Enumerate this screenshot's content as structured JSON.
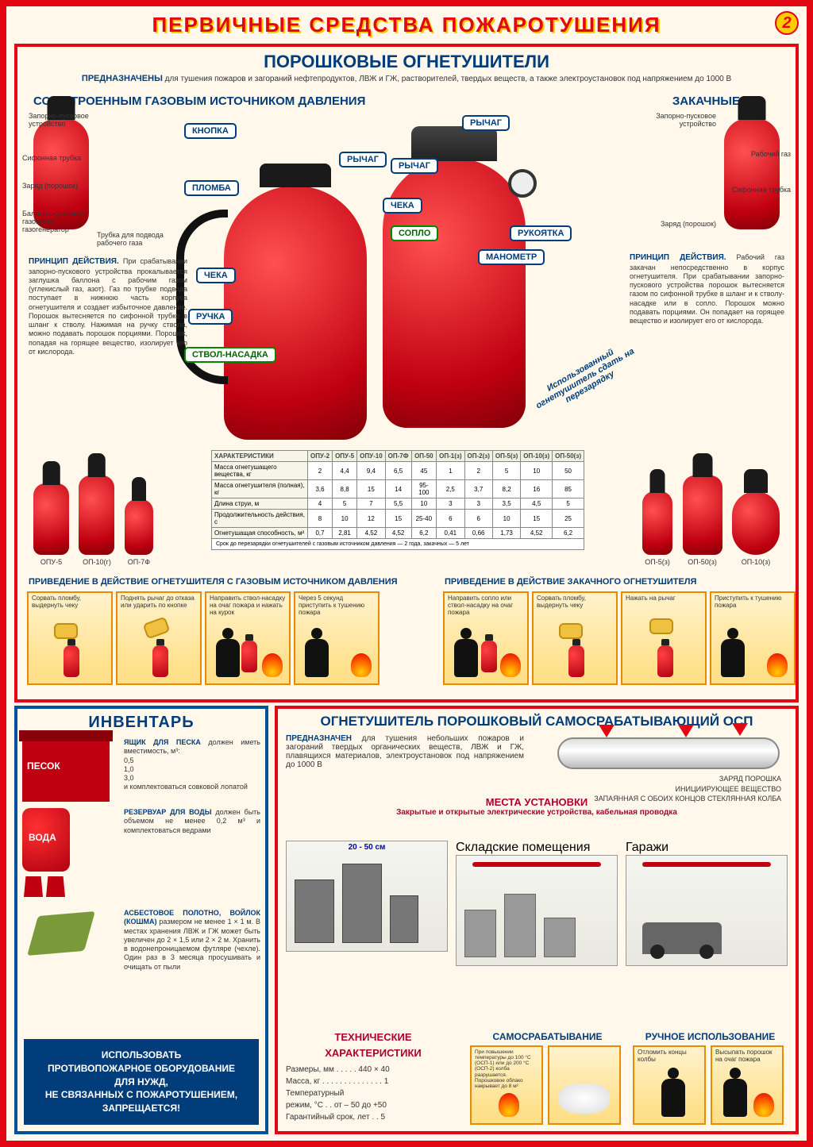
{
  "colors": {
    "frame_red": "#e30613",
    "frame_blue": "#00529b",
    "title_blue": "#003d7a",
    "accent_yellow": "#ffcc00",
    "accent_orange": "#e88b00",
    "crimson": "#b00030",
    "bg": "#fff8eb"
  },
  "badge_number": "2",
  "main_title": "ПЕРВИЧНЫЕ СРЕДСТВА ПОЖАРОТУШЕНИЯ",
  "powder": {
    "title": "ПОРОШКОВЫЕ ОГНЕТУШИТЕЛИ",
    "purpose_lead": "ПРЕДНАЗНАЧЕНЫ",
    "purpose_text": "для тушения пожаров и загораний нефтепродуктов, ЛВЖ и ГЖ, растворителей, твердых веществ, а также электроустановок под напряжением до 1000 В",
    "left_sub": "СО ВСТРОЕННЫМ ГАЗОВЫМ ИСТОЧНИКОМ ДАВЛЕНИЯ",
    "right_sub": "ЗАКАЧНЫЕ",
    "left_parts": {
      "p1": "Запорно-пусковое устройство",
      "p2": "Сифонная трубка",
      "p3": "Заряд (порошок)",
      "p4": "Баллон с рабочим газом или газогенератор",
      "p5": "Трубка для подвода рабочего газа"
    },
    "right_parts": {
      "p1": "Запорно-пусковое устройство",
      "p2": "Рабочий газ",
      "p3": "Сифонная трубка",
      "p4": "Заряд (порошок)"
    },
    "callouts_left": {
      "knopka": "КНОПКА",
      "rychag": "РЫЧАГ",
      "plomba": "ПЛОМБА",
      "cheka": "ЧЕКА",
      "ruchka": "РУЧКА",
      "stvol": "СТВОЛ-НАСАДКА"
    },
    "callouts_right": {
      "rychag1": "РЫЧАГ",
      "rychag2": "РЫЧАГ",
      "cheka": "ЧЕКА",
      "soplo": "СОПЛО",
      "rukoyatka": "РУКОЯТКА",
      "manometr": "МАНОМЕТР"
    },
    "principle_left_head": "ПРИНЦИП ДЕЙСТВИЯ.",
    "principle_left": "При срабатывании запорно-пускового устройства прокалывается заглушка баллона с рабочим газом (углекислый газ, азот). Газ по трубке подвода поступает в нижнюю часть корпуса огнетушителя и создает избыточное давление. Порошок вытесняется по сифонной трубке в шланг к стволу. Нажимая на ручку ствола, можно подавать порошок порциями. Порошок, попадая на горящее вещество, изолирует его от кислорода.",
    "principle_right_head": "ПРИНЦИП ДЕЙСТВИЯ.",
    "principle_right": "Рабочий газ закачан непосредственно в корпус огнетушителя. При срабатывании запорно-пускового устройства порошок вытесняется газом по сифонной трубке в шланг и к стволу-насадке или в сопло. Порошок можно подавать порциями. Он попадает на горящее вещество и изолирует его от кислорода.",
    "diag_note": "Использованный огнетушитель сдать на перезарядку",
    "models_left": [
      "ОПУ-5",
      "ОП-10(г)",
      "ОП-7Ф"
    ],
    "models_right": [
      "ОП-5(з)",
      "ОП-50(з)",
      "ОП-10(з)"
    ],
    "table": {
      "header_row": "ХАРАКТЕРИСТИКИ",
      "cols": [
        "ОПУ-2",
        "ОПУ-5",
        "ОПУ-10",
        "ОП-7Ф",
        "ОП-50",
        "ОП-1(з)",
        "ОП-2(з)",
        "ОП-5(з)",
        "ОП-10(з)",
        "ОП-50(з)"
      ],
      "rows": [
        {
          "name": "Масса огнетушащего вещества, кг",
          "v": [
            "2",
            "4,4",
            "9,4",
            "6,5",
            "45",
            "1",
            "2",
            "5",
            "10",
            "50"
          ]
        },
        {
          "name": "Масса огнетушителя (полная), кг",
          "v": [
            "3,6",
            "8,8",
            "15",
            "14",
            "95-100",
            "2,5",
            "3,7",
            "8,2",
            "16",
            "85"
          ]
        },
        {
          "name": "Длина струи, м",
          "v": [
            "4",
            "5",
            "7",
            "5,5",
            "10",
            "3",
            "3",
            "3,5",
            "4,5",
            "5"
          ]
        },
        {
          "name": "Продолжительность действия, с",
          "v": [
            "8",
            "10",
            "12",
            "15",
            "25-40",
            "6",
            "6",
            "10",
            "15",
            "25"
          ]
        },
        {
          "name": "Огнетушащая способность, м²",
          "v": [
            "0,7",
            "2,81",
            "4,52",
            "4,52",
            "6,2",
            "0,41",
            "0,66",
            "1,73",
            "4,52",
            "6,2"
          ]
        }
      ],
      "footnote": "Срок до перезарядки огнетушителей с газовым источником давления — 2 года, закачных — 5 лет"
    },
    "strip_left_title": "ПРИВЕДЕНИЕ В ДЕЙСТВИЕ ОГНЕТУШИТЕЛЯ С ГАЗОВЫМ ИСТОЧНИКОМ ДАВЛЕНИЯ",
    "strip_right_title": "ПРИВЕДЕНИЕ В ДЕЙСТВИЕ ЗАКАЧНОГО ОГНЕТУШИТЕЛЯ",
    "steps_left": [
      "Сорвать пломбу, выдернуть чеку",
      "Поднять рычаг до отказа или ударить по кнопке",
      "Направить ствол-насадку на очаг пожара и нажать на курок",
      "Через 5 секунд приступить к тушению пожара"
    ],
    "steps_right": [
      "Направить сопло или ствол-насадку на очаг пожара",
      "Сорвать пломбу, выдернуть чеку",
      "Нажать на рычаг",
      "Приступить к тушению пожара"
    ]
  },
  "inventory": {
    "title": "ИНВЕНТАРЬ",
    "sand_label": "ПЕСОК",
    "water_label": "ВОДА",
    "sand_head": "ЯЩИК ДЛЯ ПЕСКА",
    "sand_text": "должен иметь вместимость, м³:\n0,5\n1,0\n3,0\nи комплектоваться совковой лопатой",
    "water_head": "РЕЗЕРВУАР ДЛЯ ВОДЫ",
    "water_text": "должен быть объемом не менее 0,2 м³ и комплектоваться ведрами",
    "cloth_head": "АСБЕСТОВОЕ ПОЛОТНО, ВОЙЛОК (КОШМА)",
    "cloth_text": "размером не менее 1 × 1 м. В местах хранения ЛВЖ и ГЖ может быть увеличен до 2 × 1,5 или 2 × 2 м. Хранить в водонепроницаемом футляре (чехле). Один раз в 3 месяца просушивать и очищать от пыли",
    "warn_l1": "ИСПОЛЬЗОВАТЬ",
    "warn_l2": "ПРОТИВОПОЖАРНОЕ ОБОРУДОВАНИЕ",
    "warn_l3": "ДЛЯ НУЖД,",
    "warn_l4": "НЕ СВЯЗАННЫХ С ПОЖАРОТУШЕНИЕМ,",
    "warn_l5": "ЗАПРЕЩАЕТСЯ!"
  },
  "osp": {
    "title": "ОГНЕТУШИТЕЛЬ ПОРОШКОВЫЙ САМОСРАБАТЫВАЮЩИЙ ОСП",
    "purpose_lead": "ПРЕДНАЗНАЧЕН",
    "purpose_text": "для тушения небольших пожаров и загораний твердых органических веществ, ЛВЖ и ГЖ, плавящихся материалов, электроустановок под напряжением до 1000 В",
    "dev_labels": {
      "a": "ЗАРЯД ПОРОШКА",
      "b": "ИНИЦИИРУЮЩЕЕ ВЕЩЕСТВО",
      "c": "ЗАПАЯННАЯ С ОБОИХ КОНЦОВ СТЕКЛЯННАЯ КОЛБА"
    },
    "install_title": "МЕСТА УСТАНОВКИ",
    "install_note": "Закрытые и открытые электрические устройства, кабельная проводка",
    "rooms": [
      "Складские помещения",
      "Гаражи"
    ],
    "room0_caption": "",
    "distance": "20 - 50 см",
    "tech_head": "ТЕХНИЧЕСКИЕ ХАРАКТЕРИСТИКИ",
    "tech_lines": [
      "Размеры, мм . . . . . 440 × 40",
      "Масса, кг . . . . . . . . . . . . . . 1",
      "Температурный",
      "режим, °С . . от – 50 до +50",
      "Гарантийный срок, лет . . 5"
    ],
    "mode_auto": "САМОСРАБАТЫВАНИЕ",
    "mode_manual": "РУЧНОЕ ИСПОЛЬЗОВАНИЕ",
    "auto_caption": "При повышении температуры до 100 °С (ОСП-1) или до 200 °С (ОСП-2) колба разрушается. Порошковое облако накрывает до 8 м²",
    "manual_steps": [
      "Отломить концы колбы",
      "Высыпать порошок на очаг пожара"
    ]
  }
}
